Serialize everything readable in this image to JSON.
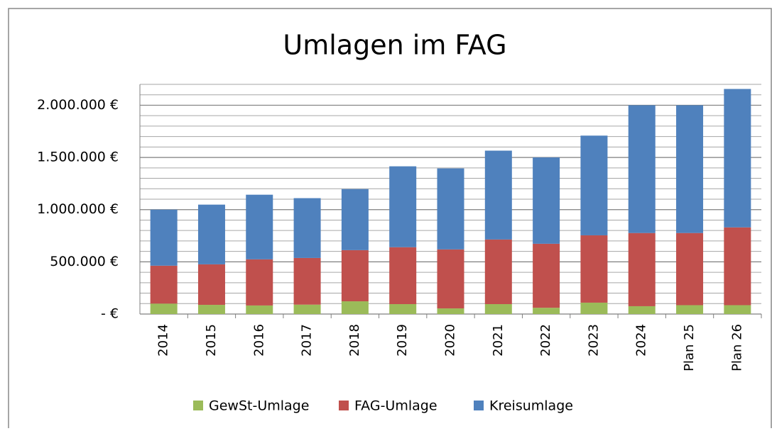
{
  "chart_data": {
    "type": "stacked_bar",
    "title": "Umlagen im FAG",
    "categories": [
      "2014",
      "2015",
      "2016",
      "2017",
      "2018",
      "2019",
      "2020",
      "2021",
      "2022",
      "2023",
      "2024",
      "Plan 25",
      "Plan 26"
    ],
    "series": [
      {
        "name": "GewSt-Umlage",
        "color": "#9bbb59",
        "values": [
          100000,
          88000,
          82000,
          90000,
          122000,
          95000,
          54000,
          95000,
          60000,
          109000,
          75000,
          85000,
          85000
        ]
      },
      {
        "name": "FAG-Umlage",
        "color": "#c0504d",
        "values": [
          363000,
          388000,
          442000,
          447000,
          490000,
          545000,
          565000,
          619000,
          613000,
          645000,
          701000,
          691000,
          745000
        ]
      },
      {
        "name": "Kreisumlage",
        "color": "#4f81bd",
        "values": [
          537000,
          572000,
          619000,
          573000,
          585000,
          775000,
          776000,
          851000,
          827000,
          955000,
          1224000,
          1224000,
          1326000
        ]
      }
    ],
    "ylim": [
      0,
      2200000
    ],
    "yticks": [
      {
        "value": 0,
        "label": "- €"
      },
      {
        "value": 500000,
        "label": "500.000 €"
      },
      {
        "value": 1000000,
        "label": "1.000.000 €"
      },
      {
        "value": 1500000,
        "label": "1.500.000 €"
      },
      {
        "value": 2000000,
        "label": "2.000.000 €"
      }
    ],
    "minor_yticks": [
      100000,
      200000,
      300000,
      400000,
      600000,
      700000,
      800000,
      900000,
      1100000,
      1200000,
      1300000,
      1400000,
      1600000,
      1700000,
      1800000,
      1900000,
      2100000,
      2200000
    ],
    "grid": true,
    "legend": "bottom"
  }
}
